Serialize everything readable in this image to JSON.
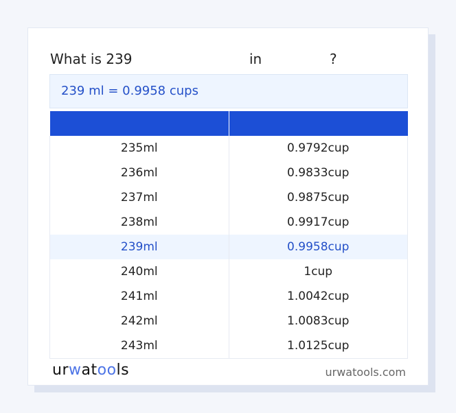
{
  "title": {
    "prefix": "What is 239",
    "middle": "in",
    "suffix": "?"
  },
  "result": "239 ml = 0.9958 cups",
  "table": {
    "headers": [
      "",
      ""
    ],
    "rows": [
      [
        "235ml",
        "0.9792cup"
      ],
      [
        "236ml",
        "0.9833cup"
      ],
      [
        "237ml",
        "0.9875cup"
      ],
      [
        "238ml",
        "0.9917cup"
      ],
      [
        "239ml",
        "0.9958cup"
      ],
      [
        "240ml",
        "1cup"
      ],
      [
        "241ml",
        "1.0042cup"
      ],
      [
        "242ml",
        "1.0083cup"
      ],
      [
        "243ml",
        "1.0125cup"
      ]
    ],
    "highlighted_row": 4
  },
  "footer": {
    "logo": "urwatools",
    "site": "urwatools.com"
  },
  "colors": {
    "accent": "#1c4fd6",
    "highlight_bg": "#eef5ff"
  }
}
